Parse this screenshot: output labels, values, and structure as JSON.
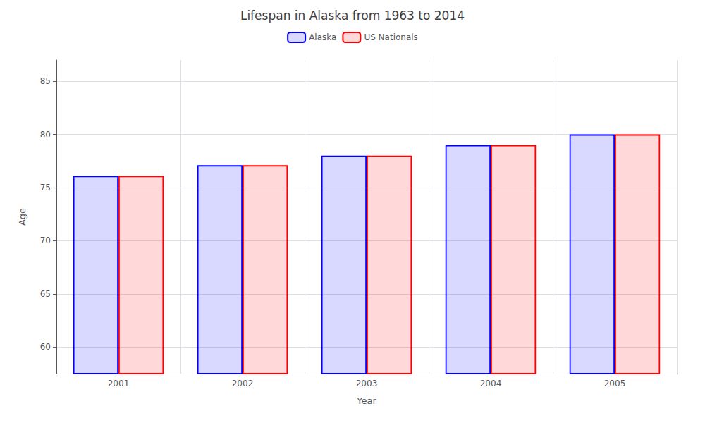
{
  "chart_data": {
    "type": "bar",
    "title": "Lifespan in Alaska from 1963 to 2014",
    "xlabel": "Year",
    "ylabel": "Age",
    "categories": [
      "2001",
      "2002",
      "2003",
      "2004",
      "2005"
    ],
    "series": [
      {
        "name": "Alaska",
        "color": "#0000ff",
        "values": [
          76.1,
          77.1,
          78.0,
          79.0,
          80.0
        ]
      },
      {
        "name": "US Nationals",
        "color": "#ff0000",
        "values": [
          76.1,
          77.1,
          78.0,
          79.0,
          80.0
        ]
      }
    ],
    "ylim": [
      57.5,
      87
    ],
    "yticks": [
      60,
      65,
      70,
      75,
      80,
      85
    ],
    "grid": true,
    "legend": "top"
  }
}
